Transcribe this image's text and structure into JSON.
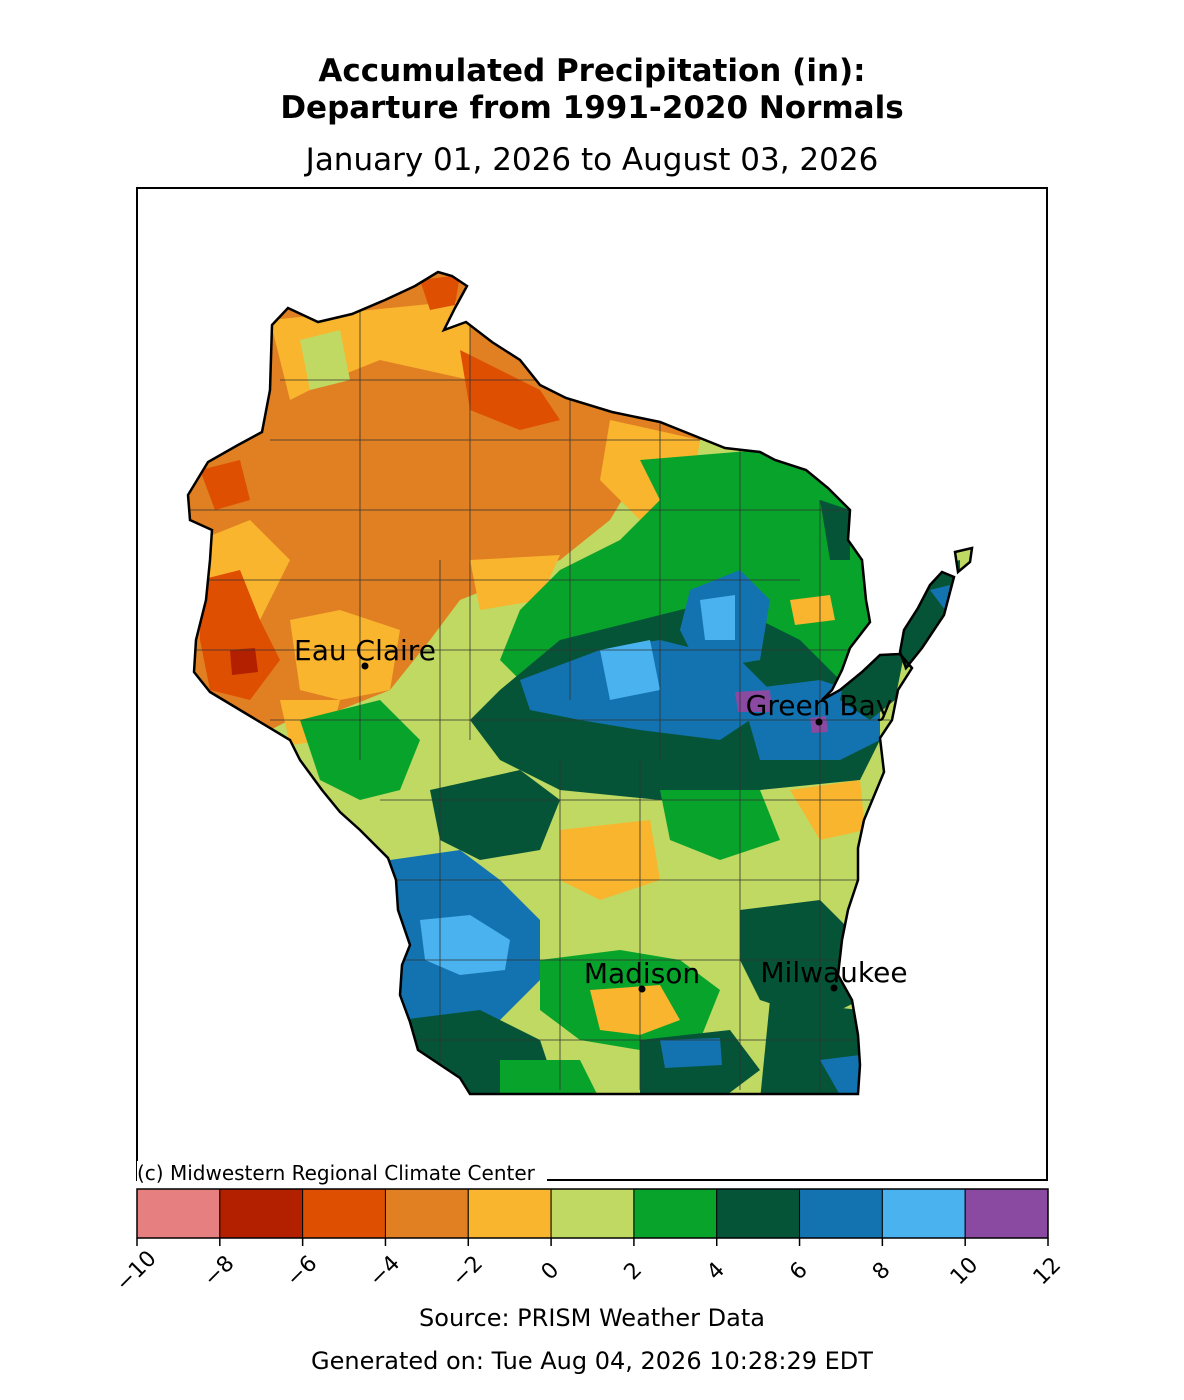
{
  "title_line1": "Accumulated Precipitation (in):",
  "title_line2": "Departure from 1991-2020 Normals",
  "subtitle": "January 01, 2026 to August 03, 2026",
  "copyright": "(c) Midwestern Regional Climate Center",
  "source": "Source: PRISM Weather Data",
  "generated": "Generated on: Tue Aug 04, 2026 10:28:29 EDT",
  "cities": [
    {
      "name": "Eau Claire"
    },
    {
      "name": "Green Bay"
    },
    {
      "name": "Madison"
    },
    {
      "name": "Milwaukee"
    }
  ],
  "legend": {
    "ticks": [
      "−10",
      "−8",
      "−6",
      "−4",
      "−2",
      "0",
      "2",
      "4",
      "6",
      "8",
      "10",
      "12"
    ],
    "colors": [
      "#e67f7f",
      "#b22000",
      "#de4f02",
      "#e08022",
      "#f8b52d",
      "#c0d962",
      "#07a32b",
      "#055438",
      "#1373b0",
      "#4ab2ee",
      "#8b4aa2"
    ]
  },
  "map_palette": {
    "outline": "#000000",
    "county_lines": "#333333"
  }
}
